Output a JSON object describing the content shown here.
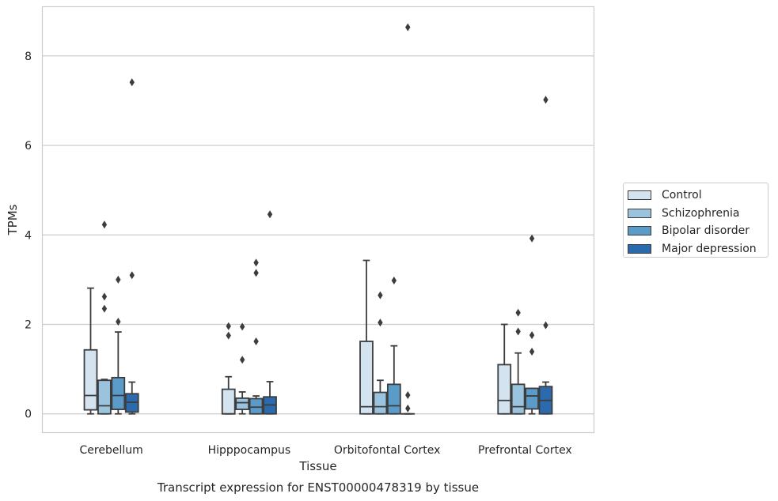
{
  "chart_data": {
    "type": "box",
    "title": "Transcript expression for ENST00000478319 by tissue",
    "xlabel": "Tissue",
    "ylabel": "TPMs",
    "ylim": [
      -0.42,
      9.1
    ],
    "yticks": [
      0,
      2,
      4,
      6,
      8
    ],
    "grid": true,
    "legend_position": "right",
    "categories": [
      "Cerebellum",
      "Hipppocampus",
      "Orbitofontal Cortex",
      "Prefrontal Cortex"
    ],
    "series": [
      {
        "name": "Control",
        "color": "#d4e3f0",
        "boxes": [
          {
            "whisker_low": 0,
            "q1": 0.09,
            "median": 0.41,
            "q3": 1.43,
            "whisker_high": 2.81,
            "outliers": []
          },
          {
            "whisker_low": 0,
            "q1": 0,
            "median": 0,
            "q3": 0.55,
            "whisker_high": 0.83,
            "outliers": [
              1.96,
              1.75
            ]
          },
          {
            "whisker_low": 0,
            "q1": 0,
            "median": 0.16,
            "q3": 1.62,
            "whisker_high": 3.43,
            "outliers": []
          },
          {
            "whisker_low": 0,
            "q1": 0,
            "median": 0.3,
            "q3": 1.1,
            "whisker_high": 2.0,
            "outliers": []
          }
        ]
      },
      {
        "name": "Schizophrenia",
        "color": "#9ac4de",
        "boxes": [
          {
            "whisker_low": 0,
            "q1": 0,
            "median": 0.18,
            "q3": 0.75,
            "whisker_high": 0.77,
            "outliers": [
              4.23,
              2.62,
              2.35
            ]
          },
          {
            "whisker_low": 0,
            "q1": 0.1,
            "median": 0.25,
            "q3": 0.35,
            "whisker_high": 0.49,
            "outliers": [
              1.95,
              1.21
            ]
          },
          {
            "whisker_low": 0,
            "q1": 0,
            "median": 0.16,
            "q3": 0.48,
            "whisker_high": 0.75,
            "outliers": [
              2.65,
              2.04
            ]
          },
          {
            "whisker_low": 0,
            "q1": 0,
            "median": 0.16,
            "q3": 0.66,
            "whisker_high": 1.36,
            "outliers": [
              2.26,
              1.84
            ]
          }
        ]
      },
      {
        "name": "Bipolar disorder",
        "color": "#5a9bc9",
        "boxes": [
          {
            "whisker_low": 0,
            "q1": 0.1,
            "median": 0.41,
            "q3": 0.81,
            "whisker_high": 1.83,
            "outliers": [
              3.0,
              2.06
            ]
          },
          {
            "whisker_low": 0,
            "q1": 0,
            "median": 0.15,
            "q3": 0.34,
            "whisker_high": 0.4,
            "outliers": [
              3.38,
              3.15,
              1.62
            ]
          },
          {
            "whisker_low": 0,
            "q1": 0,
            "median": 0.18,
            "q3": 0.66,
            "whisker_high": 1.52,
            "outliers": [
              2.98
            ]
          },
          {
            "whisker_low": 0,
            "q1": 0.11,
            "median": 0.4,
            "q3": 0.57,
            "whisker_high": 0.57,
            "outliers": [
              3.92,
              1.76,
              1.39
            ]
          }
        ]
      },
      {
        "name": "Major depression",
        "color": "#2a6aad",
        "boxes": [
          {
            "whisker_low": 0,
            "q1": 0.04,
            "median": 0.26,
            "q3": 0.45,
            "whisker_high": 0.71,
            "outliers": [
              7.41,
              3.1
            ]
          },
          {
            "whisker_low": 0,
            "q1": 0,
            "median": 0.2,
            "q3": 0.38,
            "whisker_high": 0.72,
            "outliers": [
              4.46
            ]
          },
          {
            "whisker_low": 0,
            "q1": 0,
            "median": 0,
            "q3": 0,
            "whisker_high": 0,
            "outliers": [
              8.64,
              0.42,
              0.12
            ]
          },
          {
            "whisker_low": 0,
            "q1": 0,
            "median": 0.3,
            "q3": 0.61,
            "whisker_high": 0.71,
            "outliers": [
              7.02,
              1.98
            ]
          }
        ]
      }
    ]
  }
}
